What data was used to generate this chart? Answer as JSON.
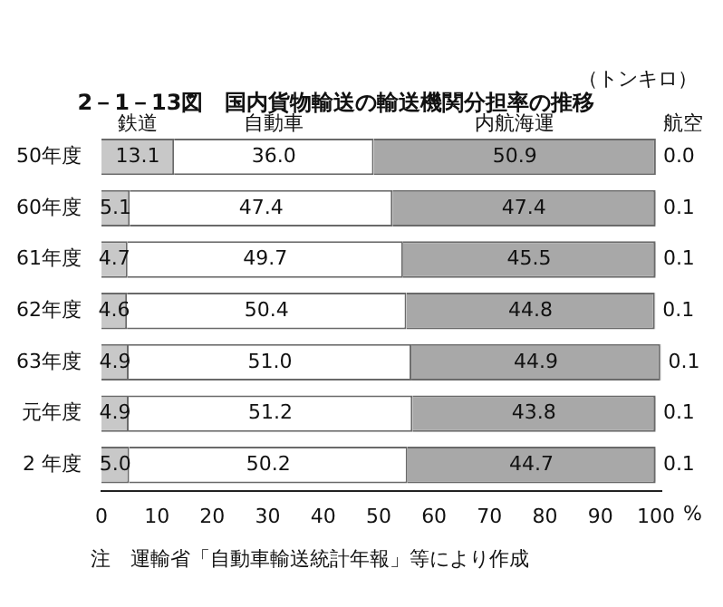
{
  "chart_data": {
    "type": "bar",
    "orientation": "horizontal",
    "stacked": true,
    "title": "2－1－13図　国内貨物輸送の輸送機関分担率の推移",
    "categories": [
      "50年度",
      "60年度",
      "61年度",
      "62年度",
      "63年度",
      "元年度",
      "2 年度"
    ],
    "series": [
      {
        "name": "鉄道",
        "color": "#c8c8c8",
        "values": [
          13.1,
          5.1,
          4.7,
          4.6,
          4.9,
          4.9,
          5.0
        ],
        "value_labels": [
          "13.1",
          "5.1",
          "4.7",
          "4.6",
          "4.9",
          "4.9",
          "5.0"
        ]
      },
      {
        "name": "自動車",
        "color": "#ffffff",
        "values": [
          36.0,
          47.4,
          49.7,
          50.4,
          51.0,
          51.2,
          50.2
        ],
        "value_labels": [
          "36.0",
          "47.4",
          "49.7",
          "50.4",
          "51.0",
          "51.2",
          "50.2"
        ]
      },
      {
        "name": "内航海運",
        "color": "#a8a8a8",
        "values": [
          50.9,
          47.4,
          45.5,
          44.8,
          44.9,
          43.8,
          44.7
        ],
        "value_labels": [
          "50.9",
          "47.4",
          "45.5",
          "44.8",
          "44.9",
          "43.8",
          "44.7"
        ]
      },
      {
        "name": "航空",
        "color": "#000000",
        "values": [
          0.0,
          0.1,
          0.1,
          0.1,
          0.1,
          0.1,
          0.1
        ],
        "value_labels": [
          "0.0",
          "0.1",
          "0.1",
          "0.1",
          "0.1",
          "0.1",
          "0.1"
        ]
      }
    ],
    "xlim": [
      0,
      101
    ],
    "xticks": [
      0,
      10,
      20,
      30,
      40,
      50,
      60,
      70,
      80,
      90,
      100
    ],
    "xlabel": "%",
    "legend": false,
    "grid": false,
    "annotations": [
      "（トンキロ）",
      "注　運輸省「自動車輸送統計年報」等により作成"
    ]
  }
}
